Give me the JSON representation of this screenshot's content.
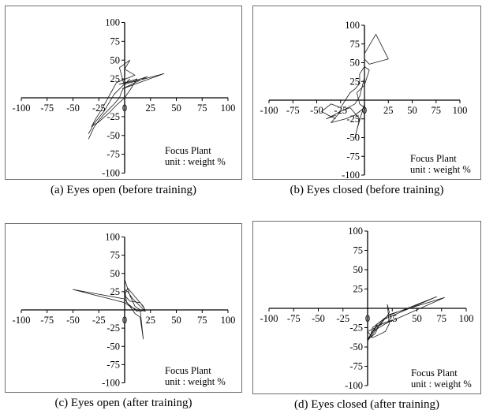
{
  "figure": {
    "panels": [
      {
        "caption": "(a) Eyes open (before training)",
        "note_line1": "Focus Plant",
        "note_line2": "unit : weight %"
      },
      {
        "caption": "(b) Eyes closed (before training)",
        "note_line1": "Focus Plant",
        "note_line2": "unit : weight %"
      },
      {
        "caption": "(c) Eyes open (after training)",
        "note_line1": "Focus Plant",
        "note_line2": "unit : weight %"
      },
      {
        "caption": "(d) Eyes closed (after training)",
        "note_line1": "Focus Plant",
        "note_line2": "unit : weight %"
      }
    ]
  },
  "chart_data": [
    {
      "type": "line",
      "title": "(a) Eyes open (before training)",
      "xlim": [
        -100,
        100
      ],
      "ylim": [
        -100,
        100
      ],
      "x_ticks": [
        -100,
        -75,
        -50,
        -25,
        0,
        25,
        50,
        75,
        100
      ],
      "y_ticks": [
        100,
        75,
        50,
        25,
        -25,
        -50,
        -75,
        -100
      ],
      "grid": false,
      "series_color": "#1a1a1a",
      "series": [
        {
          "points": [
            [
              -35,
              -55
            ],
            [
              -30,
              -40
            ],
            [
              -25,
              -30
            ],
            [
              -20,
              -22
            ],
            [
              -15,
              -15
            ],
            [
              -10,
              -8
            ],
            [
              -5,
              0
            ],
            [
              -3,
              8
            ],
            [
              0,
              15
            ],
            [
              -5,
              40
            ],
            [
              5,
              50
            ],
            [
              0,
              38
            ],
            [
              10,
              30
            ],
            [
              -8,
              20
            ],
            [
              -12,
              10
            ],
            [
              -18,
              -5
            ],
            [
              -22,
              -15
            ],
            [
              -28,
              -28
            ],
            [
              -32,
              -38
            ],
            [
              -25,
              -32
            ],
            [
              -15,
              -20
            ],
            [
              -8,
              -10
            ],
            [
              0,
              0
            ],
            [
              5,
              10
            ],
            [
              12,
              25
            ],
            [
              -5,
              18
            ],
            [
              8,
              22
            ],
            [
              22,
              28
            ],
            [
              -2,
              12
            ],
            [
              38,
              32
            ],
            [
              0,
              18
            ],
            [
              5,
              25
            ],
            [
              -10,
              5
            ],
            [
              -20,
              -18
            ],
            [
              -30,
              -35
            ],
            [
              -35,
              -48
            ]
          ]
        }
      ]
    },
    {
      "type": "line",
      "title": "(b) Eyes closed (before training)",
      "xlim": [
        -100,
        100
      ],
      "ylim": [
        -100,
        100
      ],
      "x_ticks": [
        -100,
        -75,
        -50,
        -25,
        0,
        25,
        50,
        75,
        100
      ],
      "y_ticks": [
        100,
        75,
        50,
        25,
        -25,
        -50,
        -75,
        -100
      ],
      "grid": false,
      "series_color": "#1a1a1a",
      "series": [
        {
          "points": [
            [
              -30,
              -25
            ],
            [
              -38,
              -20
            ],
            [
              -45,
              -15
            ],
            [
              -35,
              -5
            ],
            [
              -25,
              -10
            ],
            [
              -20,
              0
            ],
            [
              -15,
              10
            ],
            [
              -10,
              15
            ],
            [
              -5,
              22
            ],
            [
              -5,
              35
            ],
            [
              0,
              45
            ],
            [
              5,
              40
            ],
            [
              0,
              20
            ],
            [
              -8,
              10
            ],
            [
              -5,
              -5
            ],
            [
              0,
              -10
            ],
            [
              -10,
              -20
            ],
            [
              -20,
              -25
            ],
            [
              -35,
              -30
            ],
            [
              -25,
              -15
            ],
            [
              -10,
              -5
            ],
            [
              -5,
              5
            ],
            [
              0,
              30
            ],
            [
              0,
              62
            ],
            [
              12,
              88
            ],
            [
              25,
              55
            ],
            [
              5,
              48
            ],
            [
              0,
              55
            ],
            [
              0,
              -5
            ],
            [
              -8,
              -40
            ],
            [
              -10,
              -50
            ],
            [
              -5,
              -25
            ],
            [
              -15,
              -10
            ],
            [
              -25,
              -15
            ],
            [
              -40,
              -25
            ],
            [
              -30,
              -20
            ]
          ]
        }
      ]
    },
    {
      "type": "line",
      "title": "(c) Eyes open (after training)",
      "xlim": [
        -100,
        100
      ],
      "ylim": [
        -100,
        100
      ],
      "x_ticks": [
        -100,
        -75,
        -50,
        -25,
        0,
        25,
        50,
        75,
        100
      ],
      "y_ticks": [
        100,
        75,
        50,
        25,
        -25,
        -50,
        -75,
        -100
      ],
      "grid": false,
      "series_color": "#1a1a1a",
      "series": [
        {
          "points": [
            [
              0,
              42
            ],
            [
              5,
              20
            ],
            [
              10,
              5
            ],
            [
              15,
              0
            ],
            [
              20,
              -2
            ],
            [
              15,
              5
            ],
            [
              8,
              15
            ],
            [
              3,
              25
            ],
            [
              0,
              28
            ],
            [
              2,
              10
            ],
            [
              12,
              -2
            ],
            [
              15,
              0
            ],
            [
              18,
              -40
            ],
            [
              15,
              -10
            ],
            [
              10,
              -5
            ],
            [
              0,
              15
            ],
            [
              -50,
              28
            ],
            [
              0,
              10
            ],
            [
              5,
              5
            ],
            [
              15,
              -2
            ],
            [
              20,
              0
            ],
            [
              15,
              10
            ],
            [
              5,
              12
            ],
            [
              0,
              20
            ],
            [
              3,
              30
            ],
            [
              10,
              18
            ],
            [
              18,
              5
            ],
            [
              20,
              -2
            ]
          ]
        }
      ]
    },
    {
      "type": "line",
      "title": "(d) Eyes closed (after training)",
      "xlim": [
        -100,
        100
      ],
      "ylim": [
        -100,
        100
      ],
      "x_ticks": [
        -100,
        -75,
        -50,
        -25,
        0,
        25,
        50,
        75,
        100
      ],
      "y_ticks": [
        100,
        75,
        50,
        25,
        -25,
        -50,
        -75,
        -100
      ],
      "grid": false,
      "series_color": "#1a1a1a",
      "series": [
        {
          "points": [
            [
              0,
              -40
            ],
            [
              5,
              -30
            ],
            [
              10,
              -20
            ],
            [
              15,
              -15
            ],
            [
              20,
              -10
            ],
            [
              22,
              -5
            ],
            [
              20,
              5
            ],
            [
              22,
              -20
            ],
            [
              18,
              -30
            ],
            [
              10,
              -35
            ],
            [
              5,
              -38
            ],
            [
              0,
              -30
            ],
            [
              8,
              -25
            ],
            [
              15,
              -20
            ],
            [
              25,
              -15
            ],
            [
              10,
              -22
            ],
            [
              3,
              -35
            ],
            [
              5,
              -25
            ],
            [
              15,
              -15
            ],
            [
              70,
              15
            ],
            [
              20,
              -10
            ],
            [
              10,
              -25
            ],
            [
              0,
              -42
            ],
            [
              5,
              -30
            ],
            [
              18,
              -20
            ],
            [
              78,
              14
            ],
            [
              22,
              -8
            ],
            [
              12,
              -20
            ],
            [
              8,
              -32
            ],
            [
              3,
              -38
            ]
          ]
        }
      ]
    }
  ]
}
